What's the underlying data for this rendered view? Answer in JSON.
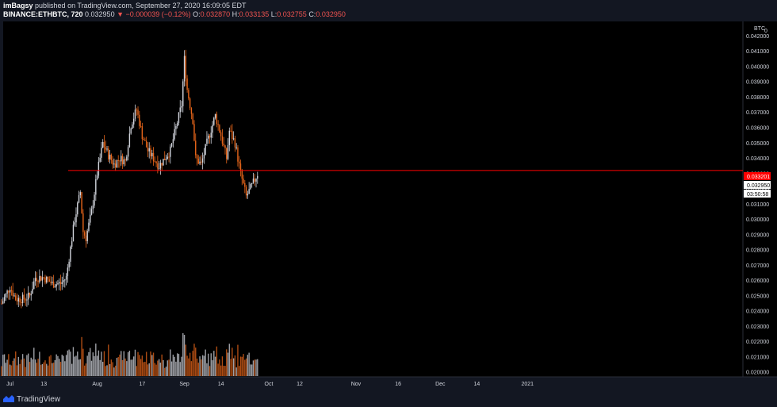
{
  "header": {
    "author": "imBagsy",
    "published": " published on TradingView.com, September 27, 2020 16:09:05 EDT",
    "symbol": "BINANCE:ETHBTC, 720",
    "price": "0.032950",
    "change": "▼ −0.000039 (−0.12%)",
    "o_label": "O:",
    "o_value": "0.032870",
    "h_label": "H:",
    "h_value": "0.033135",
    "l_label": "L:",
    "l_value": "0.032755",
    "c_label": "C:",
    "c_value": "0.032950"
  },
  "footer": {
    "brand": "TradingView"
  },
  "colors": {
    "background": "#000000",
    "up_candle": "#d1d4dc",
    "down_candle": "#e8661a",
    "hline": "#ff0000",
    "axis_text": "#d1d4dc"
  },
  "chart_data": {
    "type": "candlestick",
    "currency": "BTC",
    "y_ticks": [
      "0.042000",
      "0.041000",
      "0.040000",
      "0.039000",
      "0.038000",
      "0.037000",
      "0.036000",
      "0.035000",
      "0.034000",
      "0.033000",
      "0.032000",
      "0.031000",
      "0.030000",
      "0.029000",
      "0.028000",
      "0.027000",
      "0.026000",
      "0.025000",
      "0.024000",
      "0.023000",
      "0.022000",
      "0.021000",
      "0.020000"
    ],
    "y_top_tick_fragment": "0",
    "ylim": [
      0.0197,
      0.0428
    ],
    "x_ticks": [
      "Jul",
      "13",
      "Aug",
      "17",
      "Sep",
      "14",
      "Oct",
      "12",
      "Nov",
      "16",
      "Dec",
      "14",
      "2021"
    ],
    "horizontal_line": {
      "value": 0.033201,
      "label": "0.033201"
    },
    "last_price_label": "0.032950",
    "countdown_label": "03:50:58",
    "price_path": [
      {
        "date": "2020-06-28",
        "close": 0.0245
      },
      {
        "date": "2020-07-01",
        "close": 0.0256
      },
      {
        "date": "2020-07-03",
        "close": 0.0248
      },
      {
        "date": "2020-07-06",
        "close": 0.0248
      },
      {
        "date": "2020-07-08",
        "close": 0.025
      },
      {
        "date": "2020-07-10",
        "close": 0.0262
      },
      {
        "date": "2020-07-13",
        "close": 0.0262
      },
      {
        "date": "2020-07-16",
        "close": 0.0258
      },
      {
        "date": "2020-07-19",
        "close": 0.0258
      },
      {
        "date": "2020-07-21",
        "close": 0.0262
      },
      {
        "date": "2020-07-22",
        "close": 0.0275
      },
      {
        "date": "2020-07-24",
        "close": 0.03
      },
      {
        "date": "2020-07-26",
        "close": 0.0318
      },
      {
        "date": "2020-07-27",
        "close": 0.0292
      },
      {
        "date": "2020-07-28",
        "close": 0.0288
      },
      {
        "date": "2020-07-30",
        "close": 0.0305
      },
      {
        "date": "2020-08-01",
        "close": 0.033
      },
      {
        "date": "2020-08-03",
        "close": 0.035
      },
      {
        "date": "2020-08-05",
        "close": 0.0342
      },
      {
        "date": "2020-08-07",
        "close": 0.0336
      },
      {
        "date": "2020-08-09",
        "close": 0.034
      },
      {
        "date": "2020-08-11",
        "close": 0.0338
      },
      {
        "date": "2020-08-13",
        "close": 0.0362
      },
      {
        "date": "2020-08-15",
        "close": 0.0372
      },
      {
        "date": "2020-08-17",
        "close": 0.0355
      },
      {
        "date": "2020-08-19",
        "close": 0.0345
      },
      {
        "date": "2020-08-21",
        "close": 0.034
      },
      {
        "date": "2020-08-23",
        "close": 0.0335
      },
      {
        "date": "2020-08-25",
        "close": 0.034
      },
      {
        "date": "2020-08-27",
        "close": 0.0345
      },
      {
        "date": "2020-08-29",
        "close": 0.036
      },
      {
        "date": "2020-08-31",
        "close": 0.0375
      },
      {
        "date": "2020-09-01",
        "close": 0.0405
      },
      {
        "date": "2020-09-02",
        "close": 0.0385
      },
      {
        "date": "2020-09-04",
        "close": 0.0365
      },
      {
        "date": "2020-09-05",
        "close": 0.034
      },
      {
        "date": "2020-09-07",
        "close": 0.0336
      },
      {
        "date": "2020-09-09",
        "close": 0.035
      },
      {
        "date": "2020-09-11",
        "close": 0.0362
      },
      {
        "date": "2020-09-12",
        "close": 0.0368
      },
      {
        "date": "2020-09-14",
        "close": 0.0355
      },
      {
        "date": "2020-09-16",
        "close": 0.034
      },
      {
        "date": "2020-09-17",
        "close": 0.0358
      },
      {
        "date": "2020-09-19",
        "close": 0.035
      },
      {
        "date": "2020-09-21",
        "close": 0.033
      },
      {
        "date": "2020-09-23",
        "close": 0.0315
      },
      {
        "date": "2020-09-25",
        "close": 0.0322
      },
      {
        "date": "2020-09-27",
        "close": 0.033
      }
    ]
  }
}
